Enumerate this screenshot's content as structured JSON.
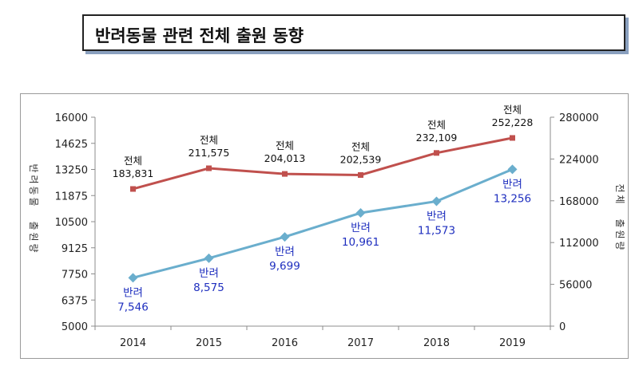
{
  "title": "반려동물 관련 전체 출원 동향",
  "chart_data": {
    "type": "line",
    "categories": [
      "2014",
      "2015",
      "2016",
      "2017",
      "2018",
      "2019"
    ],
    "left_axis": {
      "label": "반려동물  출원량",
      "ticks": [
        "16000",
        "14625",
        "13250",
        "11875",
        "10500",
        "9125",
        "7750",
        "6375",
        "5000"
      ],
      "ylim": [
        5000,
        16000
      ]
    },
    "right_axis": {
      "label": "전체  출원량",
      "ticks": [
        "280000",
        "224000",
        "168000",
        "112000",
        "56000",
        "0"
      ],
      "ylim": [
        0,
        280000
      ]
    },
    "series": [
      {
        "name": "전체",
        "axis": "right",
        "color": "#c0504d",
        "values": [
          183831,
          211575,
          204013,
          202539,
          232109,
          252228
        ],
        "value_labels": [
          "183,831",
          "211,575",
          "204,013",
          "202,539",
          "232,109",
          "252,228"
        ],
        "label_color": "#111111"
      },
      {
        "name": "반려",
        "axis": "left",
        "color": "#6aaecd",
        "values": [
          7546,
          8575,
          9699,
          10961,
          11573,
          13256
        ],
        "value_labels": [
          "7,546",
          "8,575",
          "9,699",
          "10,961",
          "11,573",
          "13,256"
        ],
        "label_color": "#1f2fbf"
      }
    ]
  }
}
